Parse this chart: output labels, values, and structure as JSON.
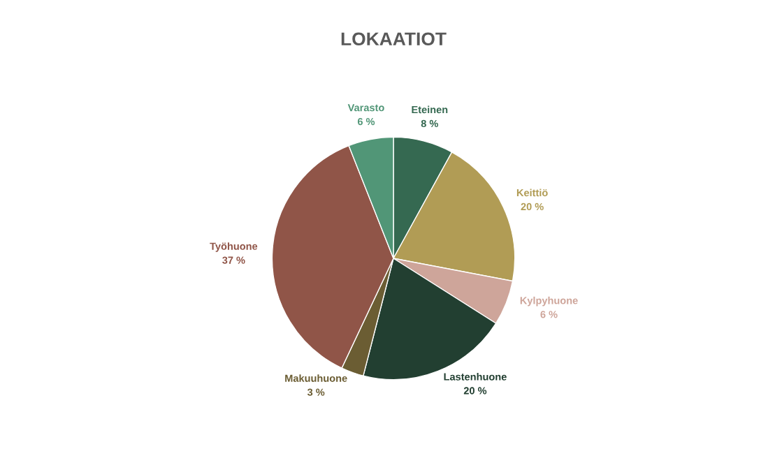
{
  "chart_data": {
    "type": "pie",
    "title": "LOKAATIOT",
    "categories": [
      "Eteinen",
      "Keittiö",
      "Kylpyhuone",
      "Lastenhuone",
      "Makuuhuone",
      "Työhuone",
      "Varasto"
    ],
    "values": [
      8,
      20,
      6,
      20,
      3,
      37,
      6
    ],
    "value_labels": [
      "8 %",
      "20 %",
      "6 %",
      "20 %",
      "3 %",
      "37 %",
      "6 %"
    ],
    "colors": [
      "#356951",
      "#b19c55",
      "#cea59a",
      "#223f31",
      "#6b5d33",
      "#905548",
      "#519677"
    ],
    "legend": false
  }
}
